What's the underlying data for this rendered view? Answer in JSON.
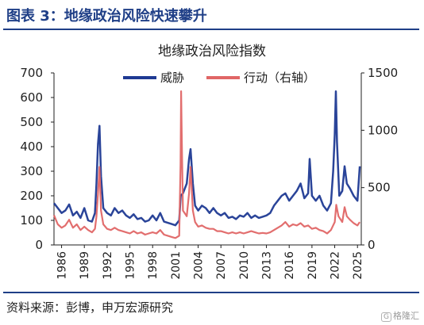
{
  "header": {
    "title": "图表 3：地缘政治风险快速攀升"
  },
  "footer": {
    "source": "资料来源：彭博，申万宏源研究"
  },
  "watermark": {
    "text": "格隆汇",
    "icon_label": "G"
  },
  "colors": {
    "threat": "#1f3a93",
    "act": "#e06666",
    "header": "#1f3f87"
  },
  "chart_data": {
    "type": "line",
    "title": "地缘政治风险指数",
    "x_ticks": [
      "1986",
      "1989",
      "1992",
      "1995",
      "1998",
      "2001",
      "2004",
      "2007",
      "2010",
      "2013",
      "2016",
      "2019",
      "2022",
      "2025"
    ],
    "x_range": [
      1985.0,
      2025.5
    ],
    "y_left": {
      "range": [
        0,
        700
      ],
      "ticks": [
        "0",
        "100",
        "200",
        "300",
        "400",
        "500",
        "600",
        "700"
      ]
    },
    "y_right": {
      "range": [
        0,
        1500
      ],
      "ticks": [
        "0",
        "500",
        "1000",
        "1500"
      ]
    },
    "legend_position": "top-center",
    "grid": false,
    "series": [
      {
        "name": "威胁",
        "axis": "left",
        "points": [
          [
            1985.0,
            170
          ],
          [
            1985.5,
            150
          ],
          [
            1986.0,
            130
          ],
          [
            1986.5,
            140
          ],
          [
            1987.0,
            165
          ],
          [
            1987.5,
            120
          ],
          [
            1988.0,
            135
          ],
          [
            1988.5,
            110
          ],
          [
            1989.0,
            150
          ],
          [
            1989.5,
            100
          ],
          [
            1990.0,
            95
          ],
          [
            1990.4,
            130
          ],
          [
            1990.6,
            250
          ],
          [
            1990.8,
            410
          ],
          [
            1991.0,
            485
          ],
          [
            1991.2,
            280
          ],
          [
            1991.5,
            150
          ],
          [
            1992.0,
            130
          ],
          [
            1992.5,
            120
          ],
          [
            1993.0,
            150
          ],
          [
            1993.5,
            130
          ],
          [
            1994.0,
            140
          ],
          [
            1994.5,
            120
          ],
          [
            1995.0,
            110
          ],
          [
            1995.5,
            125
          ],
          [
            1996.0,
            105
          ],
          [
            1996.5,
            110
          ],
          [
            1997.0,
            95
          ],
          [
            1997.5,
            100
          ],
          [
            1998.0,
            120
          ],
          [
            1998.5,
            100
          ],
          [
            1999.0,
            130
          ],
          [
            1999.5,
            95
          ],
          [
            2000.0,
            90
          ],
          [
            2000.5,
            85
          ],
          [
            2001.0,
            80
          ],
          [
            2001.5,
            100
          ],
          [
            2001.7,
            200
          ],
          [
            2002.0,
            210
          ],
          [
            2002.5,
            250
          ],
          [
            2002.8,
            350
          ],
          [
            2003.0,
            390
          ],
          [
            2003.3,
            250
          ],
          [
            2003.6,
            160
          ],
          [
            2004.0,
            140
          ],
          [
            2004.5,
            160
          ],
          [
            2005.0,
            150
          ],
          [
            2005.5,
            130
          ],
          [
            2006.0,
            150
          ],
          [
            2006.5,
            130
          ],
          [
            2007.0,
            120
          ],
          [
            2007.5,
            130
          ],
          [
            2008.0,
            110
          ],
          [
            2008.5,
            115
          ],
          [
            2009.0,
            105
          ],
          [
            2009.5,
            120
          ],
          [
            2010.0,
            115
          ],
          [
            2010.5,
            130
          ],
          [
            2011.0,
            110
          ],
          [
            2011.5,
            120
          ],
          [
            2012.0,
            110
          ],
          [
            2012.5,
            115
          ],
          [
            2013.0,
            120
          ],
          [
            2013.5,
            130
          ],
          [
            2014.0,
            160
          ],
          [
            2014.5,
            180
          ],
          [
            2015.0,
            200
          ],
          [
            2015.5,
            210
          ],
          [
            2016.0,
            180
          ],
          [
            2016.5,
            200
          ],
          [
            2017.0,
            220
          ],
          [
            2017.5,
            250
          ],
          [
            2018.0,
            190
          ],
          [
            2018.5,
            210
          ],
          [
            2018.7,
            350
          ],
          [
            2019.0,
            200
          ],
          [
            2019.5,
            180
          ],
          [
            2020.0,
            200
          ],
          [
            2020.5,
            160
          ],
          [
            2021.0,
            140
          ],
          [
            2021.5,
            170
          ],
          [
            2021.8,
            300
          ],
          [
            2022.0,
            450
          ],
          [
            2022.15,
            625
          ],
          [
            2022.3,
            420
          ],
          [
            2022.6,
            200
          ],
          [
            2023.0,
            220
          ],
          [
            2023.3,
            320
          ],
          [
            2023.6,
            250
          ],
          [
            2024.0,
            230
          ],
          [
            2024.5,
            200
          ],
          [
            2025.0,
            180
          ],
          [
            2025.3,
            320
          ]
        ]
      },
      {
        "name": "行动（右轴）",
        "axis": "right",
        "points": [
          [
            1985.0,
            260
          ],
          [
            1985.5,
            180
          ],
          [
            1986.0,
            150
          ],
          [
            1986.5,
            170
          ],
          [
            1987.0,
            220
          ],
          [
            1987.5,
            150
          ],
          [
            1988.0,
            180
          ],
          [
            1988.5,
            130
          ],
          [
            1989.0,
            160
          ],
          [
            1989.5,
            130
          ],
          [
            1990.0,
            110
          ],
          [
            1990.4,
            140
          ],
          [
            1990.6,
            250
          ],
          [
            1990.8,
            450
          ],
          [
            1991.0,
            680
          ],
          [
            1991.2,
            300
          ],
          [
            1991.5,
            180
          ],
          [
            1992.0,
            140
          ],
          [
            1992.5,
            130
          ],
          [
            1993.0,
            150
          ],
          [
            1993.5,
            130
          ],
          [
            1994.0,
            120
          ],
          [
            1994.5,
            110
          ],
          [
            1995.0,
            100
          ],
          [
            1995.5,
            120
          ],
          [
            1996.0,
            100
          ],
          [
            1996.5,
            110
          ],
          [
            1997.0,
            90
          ],
          [
            1997.5,
            100
          ],
          [
            1998.0,
            110
          ],
          [
            1998.5,
            100
          ],
          [
            1999.0,
            130
          ],
          [
            1999.5,
            90
          ],
          [
            2000.0,
            80
          ],
          [
            2000.5,
            70
          ],
          [
            2001.0,
            60
          ],
          [
            2001.5,
            80
          ],
          [
            2001.68,
            700
          ],
          [
            2001.75,
            1340
          ],
          [
            2001.85,
            900
          ],
          [
            2002.0,
            300
          ],
          [
            2002.5,
            250
          ],
          [
            2002.8,
            450
          ],
          [
            2003.0,
            680
          ],
          [
            2003.3,
            300
          ],
          [
            2003.6,
            200
          ],
          [
            2004.0,
            160
          ],
          [
            2004.5,
            170
          ],
          [
            2005.0,
            150
          ],
          [
            2005.5,
            140
          ],
          [
            2006.0,
            140
          ],
          [
            2006.5,
            120
          ],
          [
            2007.0,
            120
          ],
          [
            2007.5,
            110
          ],
          [
            2008.0,
            100
          ],
          [
            2008.5,
            110
          ],
          [
            2009.0,
            100
          ],
          [
            2009.5,
            110
          ],
          [
            2010.0,
            100
          ],
          [
            2010.5,
            110
          ],
          [
            2011.0,
            120
          ],
          [
            2011.5,
            110
          ],
          [
            2012.0,
            100
          ],
          [
            2012.5,
            105
          ],
          [
            2013.0,
            100
          ],
          [
            2013.5,
            110
          ],
          [
            2014.0,
            130
          ],
          [
            2014.5,
            150
          ],
          [
            2015.0,
            170
          ],
          [
            2015.5,
            200
          ],
          [
            2016.0,
            160
          ],
          [
            2016.5,
            180
          ],
          [
            2017.0,
            170
          ],
          [
            2017.5,
            190
          ],
          [
            2018.0,
            160
          ],
          [
            2018.5,
            170
          ],
          [
            2019.0,
            140
          ],
          [
            2019.5,
            150
          ],
          [
            2020.0,
            130
          ],
          [
            2020.5,
            120
          ],
          [
            2021.0,
            100
          ],
          [
            2021.5,
            130
          ],
          [
            2022.0,
            200
          ],
          [
            2022.2,
            350
          ],
          [
            2022.5,
            250
          ],
          [
            2023.0,
            200
          ],
          [
            2023.3,
            330
          ],
          [
            2023.6,
            250
          ],
          [
            2024.0,
            220
          ],
          [
            2024.5,
            190
          ],
          [
            2025.0,
            170
          ],
          [
            2025.3,
            200
          ]
        ]
      }
    ]
  }
}
